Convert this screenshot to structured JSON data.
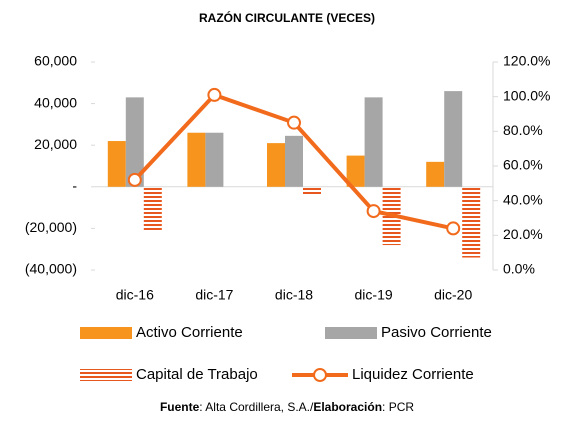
{
  "chart_data": {
    "type": "bar-line",
    "title": "RAZÓN CIRCULANTE (VECES)",
    "categories": [
      "dic-16",
      "dic-17",
      "dic-18",
      "dic-19",
      "dic-20"
    ],
    "series": [
      {
        "name": "Activo Corriente",
        "color": "#f7941d",
        "type": "bar",
        "values": [
          22000,
          26000,
          21000,
          15000,
          12000
        ]
      },
      {
        "name": "Pasivo Corriente",
        "color": "#a6a6a6",
        "type": "bar",
        "values": [
          43000,
          26000,
          24500,
          43000,
          46000
        ]
      },
      {
        "name": "Capital de Trabajo",
        "color": "#e8571e",
        "type": "striped-bar",
        "values": [
          -21000,
          0,
          -3500,
          -28000,
          -34000
        ]
      },
      {
        "name": "Liquidez Corriente",
        "color": "#f26b1d",
        "type": "line",
        "axis": "y2",
        "values": [
          52,
          101,
          85,
          34,
          24
        ]
      }
    ],
    "ylim": [
      -40000,
      60000
    ],
    "yticks": [
      {
        "value": -40000,
        "label": "(40,000)"
      },
      {
        "value": -20000,
        "label": "(20,000)"
      },
      {
        "value": 0,
        "label": "-"
      },
      {
        "value": 20000,
        "label": "20,000"
      },
      {
        "value": 40000,
        "label": "40,000"
      },
      {
        "value": 60000,
        "label": "60,000"
      }
    ],
    "y2lim": [
      0,
      120
    ],
    "y2ticks": [
      {
        "value": 0,
        "label": "0.0%"
      },
      {
        "value": 20,
        "label": "20.0%"
      },
      {
        "value": 40,
        "label": "40.0%"
      },
      {
        "value": 60,
        "label": "60.0%"
      },
      {
        "value": 80,
        "label": "80.0%"
      },
      {
        "value": 100,
        "label": "100.0%"
      },
      {
        "value": 120,
        "label": "120.0%"
      }
    ],
    "source": {
      "label1": "Fuente",
      "text1": ": Alta Cordillera, S.A./",
      "label2": "Elaboración",
      "text2": ": PCR"
    }
  }
}
